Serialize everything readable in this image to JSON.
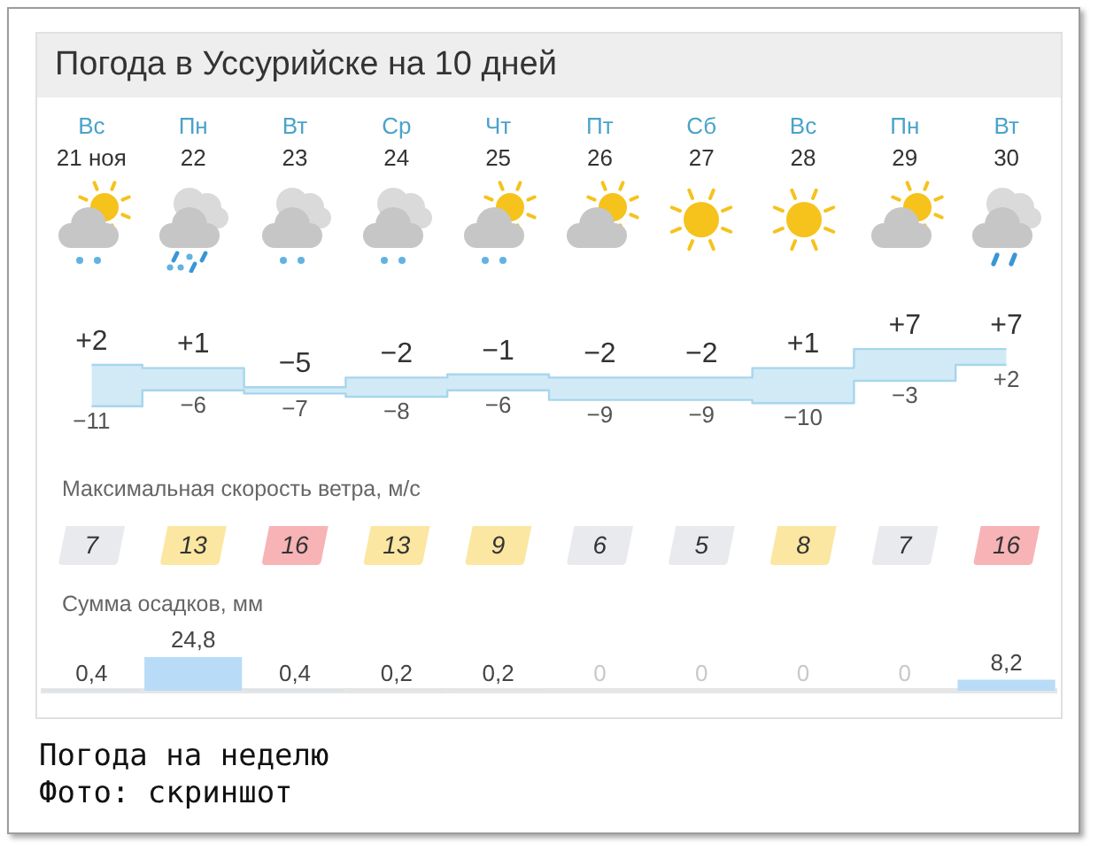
{
  "chart_data": [
    {
      "type": "step",
      "title": "Погода в Уссурийске на 10 дней",
      "categories": [
        "Вс 21 ноя",
        "Пн 22",
        "Вт 23",
        "Ср 24",
        "Чт 25",
        "Пт 26",
        "Сб 27",
        "Вс 28",
        "Пн 29",
        "Вт 30"
      ],
      "tick_labels": "x",
      "series": [
        {
          "color": "#a6d6ee",
          "values": [
            2,
            1,
            -5,
            -2,
            -1,
            -2,
            -2,
            1,
            7,
            7
          ],
          "value_labels": [
            "+2",
            "+1",
            "−5",
            "−2",
            "−1",
            "−2",
            "−2",
            "+1",
            "+7",
            "+7"
          ]
        },
        {
          "color": "#a6d6ee",
          "values": [
            -11,
            -6,
            -7,
            -8,
            -6,
            -9,
            -9,
            -10,
            -3,
            2
          ],
          "value_labels": [
            "−11",
            "−6",
            "−7",
            "−8",
            "−6",
            "−9",
            "−9",
            "−10",
            "−3",
            "+2"
          ]
        }
      ]
    },
    {
      "type": "other",
      "title": "Максимальная скорость ветра, м/с",
      "categories": [
        null,
        null,
        null,
        null,
        null,
        null,
        null,
        null,
        null,
        null
      ],
      "values": [
        7,
        13,
        16,
        13,
        9,
        6,
        5,
        8,
        7,
        16
      ],
      "colors": [
        "#e9eaee",
        "#fbe7a1",
        "#f7b3b6",
        "#fbe7a1",
        "#fbe7a1",
        "#e9eaee",
        "#e9eaee",
        "#fbe7a1",
        "#e9eaee",
        "#f7b3b6"
      ],
      "data_labels": true
    },
    {
      "type": "bar",
      "title": "Сумма осадков, мм",
      "categories": [
        null,
        null,
        null,
        null,
        null,
        null,
        null,
        null,
        null,
        null
      ],
      "values": [
        0.4,
        24.8,
        0.4,
        0.2,
        0.2,
        0,
        0,
        0,
        0,
        8.2
      ],
      "value_labels": [
        "0,4",
        "24,8",
        "0,4",
        "0,2",
        "0,2",
        "0",
        "0",
        "0",
        "0",
        "8,2"
      ],
      "color": "#b8dcf8",
      "tick_labels": false,
      "annotations": [
        "Погода на неделю",
        "Фото: скриншот"
      ]
    }
  ]
}
